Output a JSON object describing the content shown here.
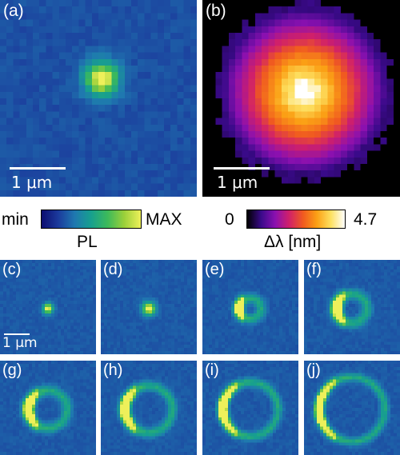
{
  "panels": {
    "a": {
      "label": "(a)",
      "scale": "1 μm"
    },
    "b": {
      "label": "(b)",
      "scale": "1 μm"
    },
    "c": {
      "label": "(c)",
      "scale": "1 μm"
    },
    "d": {
      "label": "(d)"
    },
    "e": {
      "label": "(e)"
    },
    "f": {
      "label": "(f)"
    },
    "g": {
      "label": "(g)"
    },
    "h": {
      "label": "(h)"
    },
    "i": {
      "label": "(i)"
    },
    "j": {
      "label": "(j)"
    }
  },
  "colorbars": {
    "pl": {
      "min": "min",
      "max": "MAX",
      "title": "PL"
    },
    "shift": {
      "min": "0",
      "max": "4.7",
      "title": "Δλ [nm]"
    }
  },
  "colors": {
    "background_blue": "#1a3a9a",
    "black": "#000000"
  }
}
